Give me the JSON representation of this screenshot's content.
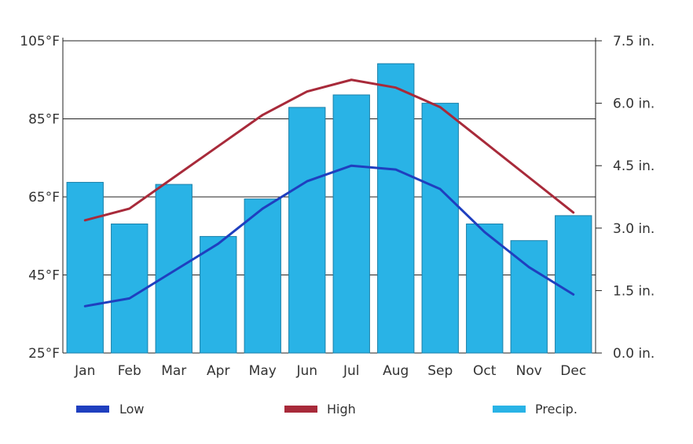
{
  "chart_data": {
    "type": "bar",
    "categories": [
      "Jan",
      "Feb",
      "Mar",
      "Apr",
      "May",
      "Jun",
      "Jul",
      "Aug",
      "Sep",
      "Oct",
      "Nov",
      "Dec"
    ],
    "series": [
      {
        "name": "Precip.",
        "type": "bar",
        "axis": "right",
        "unit": "in.",
        "color": "#29b3e6",
        "values": [
          4.1,
          3.1,
          4.05,
          2.8,
          3.7,
          5.9,
          6.2,
          6.95,
          6.0,
          3.1,
          2.7,
          3.3
        ]
      },
      {
        "name": "High",
        "type": "line",
        "axis": "left",
        "unit": "°F",
        "color": "#a82a3a",
        "values": [
          59,
          62,
          70,
          78,
          86,
          92,
          95,
          93,
          88,
          79,
          70,
          61
        ]
      },
      {
        "name": "Low",
        "type": "line",
        "axis": "left",
        "unit": "°F",
        "color": "#1f3fbf",
        "values": [
          37,
          39,
          46,
          53,
          62,
          69,
          73,
          72,
          67,
          56,
          47,
          40
        ]
      }
    ],
    "left_axis": {
      "ticks": [
        "105°F",
        "85°F",
        "65°F",
        "45°F",
        "25°F"
      ],
      "range": [
        25,
        105
      ]
    },
    "right_axis": {
      "ticks": [
        "7.5 in.",
        "6.0 in.",
        "4.5 in.",
        "3.0 in.",
        "1.5 in.",
        "0.0 in."
      ],
      "range": [
        0,
        7.5
      ]
    },
    "grid": true,
    "legend_position": "bottom"
  },
  "legend": {
    "low_label": "Low",
    "high_label": "High",
    "precip_label": "Precip."
  }
}
